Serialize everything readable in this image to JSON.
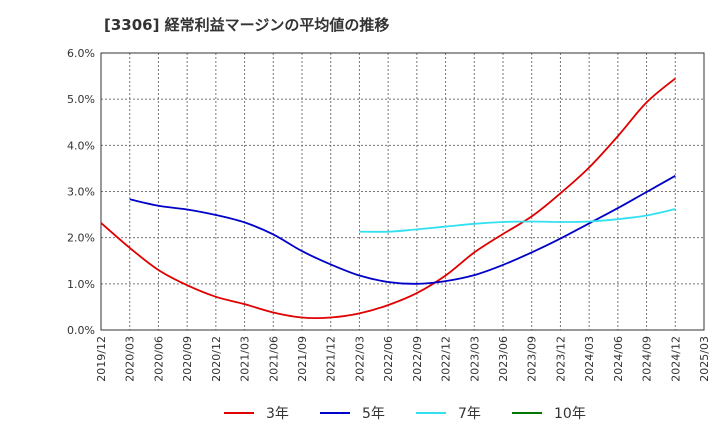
{
  "chart_data": {
    "type": "line",
    "title": "[3306]  経常利益マージンの平均値の推移",
    "xlabel": "",
    "ylabel": "",
    "categories": [
      "2019/12",
      "2020/03",
      "2020/06",
      "2020/09",
      "2020/12",
      "2021/03",
      "2021/06",
      "2021/09",
      "2021/12",
      "2022/03",
      "2022/06",
      "2022/09",
      "2022/12",
      "2023/03",
      "2023/06",
      "2023/09",
      "2023/12",
      "2024/03",
      "2024/06",
      "2024/09",
      "2024/12",
      "2025/03"
    ],
    "yticks": [
      "0.0%",
      "1.0%",
      "2.0%",
      "3.0%",
      "4.0%",
      "5.0%",
      "6.0%"
    ],
    "ylim": [
      0,
      6
    ],
    "grid": true,
    "legend_position": "bottom",
    "series": [
      {
        "name": "3年",
        "color": "#e00000",
        "values": [
          2.32,
          1.78,
          1.3,
          0.97,
          0.72,
          0.56,
          0.38,
          0.27,
          0.27,
          0.36,
          0.54,
          0.8,
          1.18,
          1.68,
          2.08,
          2.46,
          2.96,
          3.52,
          4.2,
          4.93,
          5.45,
          null
        ]
      },
      {
        "name": "5年",
        "color": "#0000c8",
        "values": [
          null,
          2.83,
          2.69,
          2.61,
          2.49,
          2.33,
          2.07,
          1.71,
          1.42,
          1.18,
          1.04,
          1.0,
          1.06,
          1.19,
          1.41,
          1.68,
          1.98,
          2.31,
          2.64,
          2.99,
          3.34,
          null
        ]
      },
      {
        "name": "7年",
        "color": "#33e0f0",
        "values": [
          null,
          null,
          null,
          null,
          null,
          null,
          null,
          null,
          null,
          2.13,
          2.13,
          2.18,
          2.24,
          2.3,
          2.34,
          2.35,
          2.34,
          2.35,
          2.4,
          2.48,
          2.62,
          null
        ]
      },
      {
        "name": "10年",
        "color": "#007700",
        "values": [
          null,
          null,
          null,
          null,
          null,
          null,
          null,
          null,
          null,
          null,
          null,
          null,
          null,
          null,
          null,
          null,
          null,
          null,
          null,
          null,
          null,
          null
        ]
      }
    ]
  }
}
